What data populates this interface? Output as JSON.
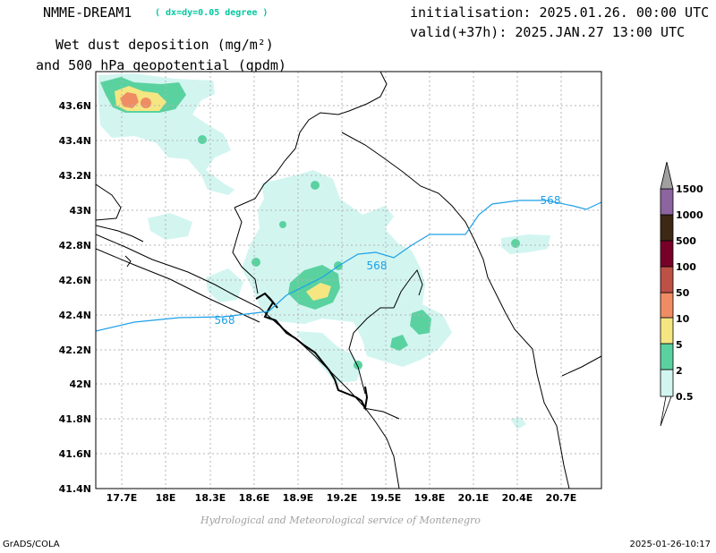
{
  "header": {
    "model": "NMME-DREAM1",
    "resolution": "( dx=dy=0.05 degree )",
    "init": "initialisation: 2025.01.26. 00:00 UTC",
    "valid": "valid(+37h): 2025.JAN.27 13:00 UTC",
    "variable_line1": "Wet dust deposition (mg/m²)",
    "variable_line2": "and 500 hPa geopotential (gpdm)"
  },
  "map": {
    "lon_ticks": [
      "17.7E",
      "18E",
      "18.3E",
      "18.6E",
      "18.9E",
      "19.2E",
      "19.5E",
      "19.8E",
      "20.1E",
      "20.4E",
      "20.7E"
    ],
    "lat_ticks": [
      "43.6N",
      "43.4N",
      "43.2N",
      "43N",
      "42.8N",
      "42.6N",
      "42.4N",
      "42.2N",
      "42N",
      "41.8N",
      "41.6N",
      "41.4N"
    ],
    "contour_labels": [
      "568",
      "568",
      "568"
    ],
    "contour_color": "#1ea0e6",
    "grid": true
  },
  "legend": {
    "levels": [
      "0.5",
      "2",
      "5",
      "10",
      "50",
      "100",
      "500",
      "1000",
      "1500"
    ],
    "colors": [
      "#d2f5f0",
      "#5ad2a0",
      "#f5e682",
      "#f08c64",
      "#be5046",
      "#780028",
      "#3c2814",
      "#8c64a0",
      "#a0a0a0"
    ]
  },
  "footer": {
    "credit": "Hydrological and Meteorological service of Montenegro",
    "software": "GrADS/COLA",
    "timestamp": "2025-01-26-10:17"
  }
}
